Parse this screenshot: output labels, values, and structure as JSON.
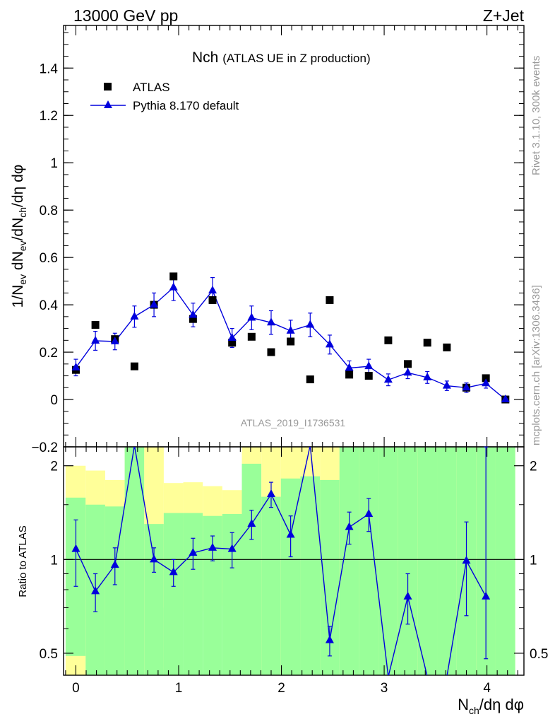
{
  "header": {
    "energy_label": "13000 GeV pp",
    "process_label": "Z+Jet"
  },
  "side_labels": {
    "rivet": "Rivet 3.1.10,  300k events",
    "mcplots": "mcplots.cern.ch [arXiv:1306.3436]"
  },
  "chart_data": [
    {
      "type": "scatter",
      "panel": "main",
      "title_main": "Nch",
      "title_sub": "(ATLAS UE in Z production)",
      "analysis_label": "ATLAS_2019_I1736531",
      "ylabel": "1/N_ev dN_ev/dN_ch/dη dφ",
      "ylabel_parts": {
        "p1": "1/N",
        "s1": "ev",
        "p2": " dN",
        "s2": "ev",
        "p3": "/dN",
        "s3": "ch",
        "p4": "/dη dφ"
      },
      "xlim": [
        -0.12,
        4.36
      ],
      "ylim": [
        -0.2,
        1.58
      ],
      "yticks": [
        -0.2,
        0,
        0.2,
        0.4,
        0.6,
        0.8,
        1,
        1.2,
        1.4
      ],
      "ytick_labels": [
        "−0.2",
        "0",
        "0.2",
        "0.4",
        "0.6",
        "0.8",
        "1",
        "1.2",
        "1.4"
      ],
      "legend": {
        "position": "top-left",
        "entries": [
          "ATLAS",
          "Pythia 8.170 default"
        ]
      },
      "x": [
        0,
        0.19,
        0.38,
        0.57,
        0.76,
        0.95,
        1.14,
        1.33,
        1.52,
        1.71,
        1.9,
        2.09,
        2.28,
        2.47,
        2.66,
        2.85,
        3.04,
        3.23,
        3.42,
        3.61,
        3.8,
        3.99,
        4.18
      ],
      "series": [
        {
          "name": "ATLAS",
          "marker": "square",
          "color": "#000000",
          "values": [
            0.125,
            0.315,
            0.255,
            0.14,
            0.4,
            0.52,
            0.34,
            0.42,
            0.24,
            0.265,
            0.2,
            0.245,
            0.085,
            0.42,
            0.105,
            0.1,
            0.25,
            0.15,
            0.24,
            0.22,
            0.05,
            0.09,
            0.0
          ]
        },
        {
          "name": "Pythia 8.170 default",
          "marker": "triangle",
          "color": "#0000dd",
          "values": [
            0.135,
            0.248,
            0.245,
            0.35,
            0.4,
            0.473,
            0.357,
            0.46,
            0.26,
            0.345,
            0.325,
            0.29,
            0.315,
            0.232,
            0.133,
            0.14,
            0.083,
            0.113,
            0.093,
            0.058,
            0.05,
            0.068,
            0.0
          ],
          "errors": [
            0.035,
            0.04,
            0.035,
            0.045,
            0.05,
            0.055,
            0.05,
            0.055,
            0.04,
            0.05,
            0.05,
            0.045,
            0.05,
            0.04,
            0.03,
            0.03,
            0.025,
            0.025,
            0.025,
            0.02,
            0.02,
            0.02,
            0.008
          ]
        }
      ]
    },
    {
      "type": "line",
      "panel": "ratio",
      "ylabel": "Ratio to ATLAS",
      "xlabel": "N_ch/dη dφ",
      "xlabel_parts": {
        "p1": "N",
        "s1": "ch",
        "p2": "/dη dφ"
      },
      "xlim": [
        -0.12,
        4.36
      ],
      "ylim": [
        0.425,
        2.3
      ],
      "yscale": "log",
      "yticks": [
        0.5,
        1,
        2
      ],
      "ytick_labels": [
        "0.5",
        "1",
        "2"
      ],
      "xticks": [
        0,
        1,
        2,
        3,
        4
      ],
      "xtick_labels": [
        "0",
        "1",
        "2",
        "3",
        "4"
      ],
      "bands": {
        "edges": [
          -0.1,
          0.095,
          0.285,
          0.475,
          0.665,
          0.855,
          1.045,
          1.235,
          1.425,
          1.615,
          1.805,
          1.995,
          2.185,
          2.375,
          2.565,
          2.755,
          2.945,
          3.135,
          3.325,
          3.515,
          3.705,
          3.895,
          4.085
        ],
        "yellow_lo": [
          0.3,
          0.3,
          0.66,
          0.44,
          0.3,
          0.7,
          0.68,
          0.71,
          0.78,
          0.3,
          0.3,
          0.3,
          0.54,
          0.3,
          0.67,
          0.3,
          0.3,
          0.3,
          0.3,
          0.3,
          0.3,
          0.3,
          0.3
        ],
        "yellow_hi": [
          2.0,
          1.93,
          1.8,
          2.3,
          2.3,
          1.76,
          1.77,
          1.72,
          1.67,
          2.3,
          2.3,
          2.3,
          2.3,
          2.3,
          2.3,
          2.3,
          2.3,
          2.3,
          2.3,
          2.3,
          2.3,
          2.3,
          2.3
        ],
        "green_lo": [
          0.49,
          0.3,
          0.3,
          0.3,
          0.3,
          0.3,
          0.3,
          0.3,
          0.3,
          0.3,
          0.3,
          0.3,
          0.3,
          0.3,
          0.3,
          0.3,
          0.3,
          0.3,
          0.3,
          0.3,
          0.3,
          0.3,
          0.3
        ],
        "green_hi": [
          1.58,
          1.5,
          1.48,
          2.3,
          1.3,
          1.41,
          1.41,
          1.38,
          1.4,
          2.03,
          1.59,
          1.82,
          1.85,
          1.8,
          2.3,
          2.3,
          2.3,
          2.3,
          2.3,
          2.3,
          2.3,
          2.3,
          2.3
        ]
      },
      "series": [
        {
          "name": "Pythia 8.170 default / ATLAS",
          "color": "#0000dd",
          "x": [
            0,
            0.19,
            0.38,
            0.57,
            0.76,
            0.95,
            1.14,
            1.33,
            1.52,
            1.71,
            1.9,
            2.09,
            2.28,
            2.47,
            2.66,
            2.85,
            3.04,
            3.23,
            3.42,
            3.61,
            3.8,
            3.99
          ],
          "values": [
            1.08,
            0.79,
            0.96,
            2.5,
            1.0,
            0.91,
            1.05,
            1.09,
            1.08,
            1.3,
            1.62,
            1.2,
            3.5,
            0.55,
            1.27,
            1.4,
            0.33,
            0.76,
            0.3,
            0.26,
            0.99,
            0.76
          ],
          "err_lo": [
            0.26,
            0.11,
            0.13,
            0.0,
            0.09,
            0.09,
            0.12,
            0.1,
            0.14,
            0.14,
            0.15,
            0.18,
            0.0,
            0.06,
            0.15,
            0.17,
            0.0,
            0.14,
            0.0,
            0.0,
            0.33,
            0.28
          ],
          "err_hi": [
            0.26,
            0.11,
            0.13,
            0.0,
            0.09,
            0.09,
            0.12,
            0.1,
            0.14,
            0.14,
            0.15,
            0.18,
            0.0,
            0.06,
            0.15,
            0.17,
            0.0,
            0.14,
            0.0,
            0.0,
            0.33,
            1.6
          ]
        }
      ]
    }
  ]
}
